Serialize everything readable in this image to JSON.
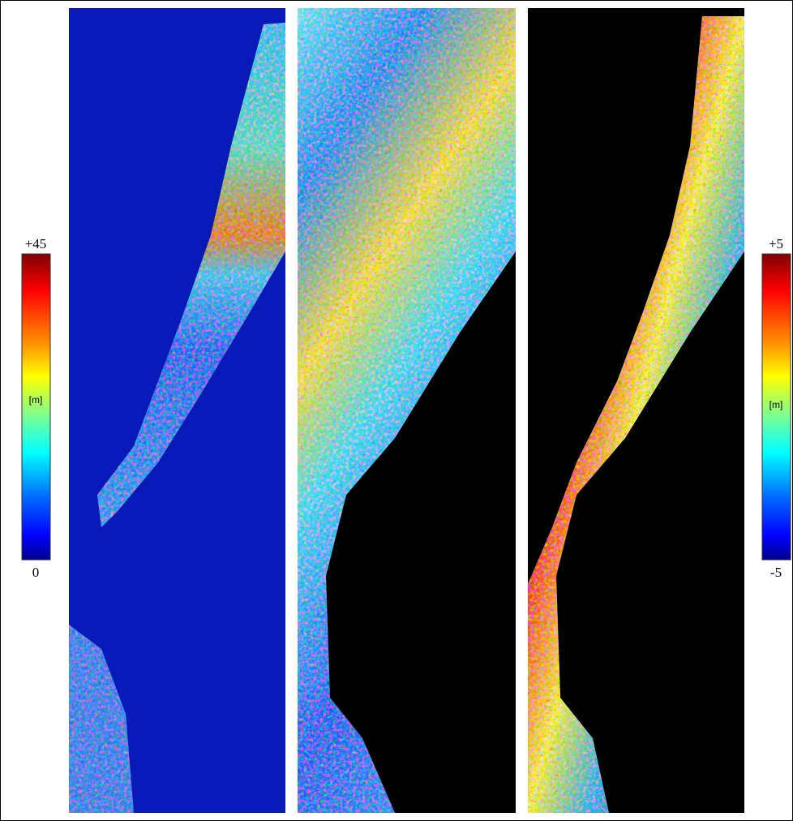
{
  "colorbars": [
    {
      "top": "+45",
      "unit": "[m]",
      "bottom": "0"
    },
    {
      "top": "+5",
      "unit": "[m]",
      "bottom": "-5"
    }
  ]
}
